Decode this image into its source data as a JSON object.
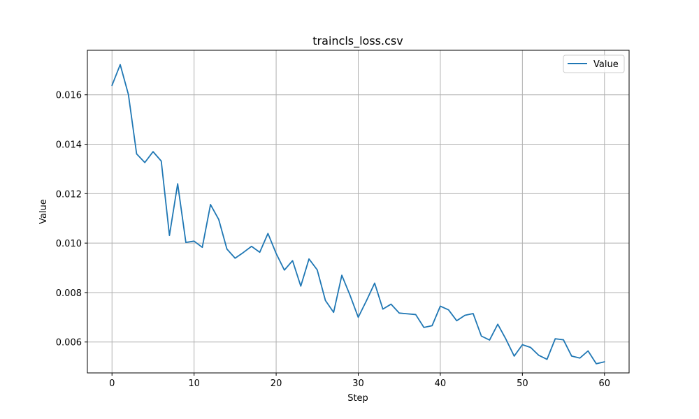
{
  "chart_data": {
    "type": "line",
    "title": "traincls_loss.csv",
    "xlabel": "Step",
    "ylabel": "Value",
    "xlim": [
      -3,
      63
    ],
    "ylim": [
      0.00475,
      0.0178
    ],
    "xticks": [
      0,
      10,
      20,
      30,
      40,
      50,
      60
    ],
    "yticks": [
      0.006,
      0.008,
      0.01,
      0.012,
      0.014,
      0.016
    ],
    "ytick_labels": [
      "0.006",
      "0.008",
      "0.010",
      "0.012",
      "0.014",
      "0.016"
    ],
    "grid": true,
    "legend": {
      "position": "top-right",
      "entries": [
        "Value"
      ]
    },
    "series": [
      {
        "name": "Value",
        "color": "#1f77b4",
        "x": [
          0,
          1,
          2,
          3,
          4,
          5,
          6,
          7,
          8,
          9,
          10,
          11,
          12,
          13,
          14,
          15,
          16,
          17,
          18,
          19,
          20,
          21,
          22,
          23,
          24,
          25,
          26,
          27,
          28,
          29,
          30,
          31,
          32,
          33,
          34,
          35,
          36,
          37,
          38,
          39,
          40,
          41,
          42,
          43,
          44,
          45,
          46,
          47,
          48,
          49,
          50,
          51,
          52,
          53,
          54,
          55,
          56,
          57,
          58,
          59,
          60
        ],
        "values": [
          0.01638,
          0.01722,
          0.01601,
          0.01361,
          0.01326,
          0.0137,
          0.01332,
          0.01031,
          0.0124,
          0.01003,
          0.01008,
          0.00983,
          0.01156,
          0.01096,
          0.00976,
          0.00939,
          0.00962,
          0.00987,
          0.00963,
          0.01039,
          0.00958,
          0.00891,
          0.00929,
          0.00826,
          0.00936,
          0.00892,
          0.00768,
          0.0072,
          0.0087,
          0.00789,
          0.007,
          0.00767,
          0.00838,
          0.00733,
          0.00753,
          0.00717,
          0.00714,
          0.00711,
          0.00659,
          0.00666,
          0.00745,
          0.0073,
          0.00686,
          0.00708,
          0.00715,
          0.00624,
          0.00608,
          0.00672,
          0.00611,
          0.00543,
          0.00589,
          0.00578,
          0.00546,
          0.0053,
          0.00613,
          0.00609,
          0.00543,
          0.00535,
          0.00564,
          0.00512,
          0.0052
        ]
      }
    ]
  }
}
